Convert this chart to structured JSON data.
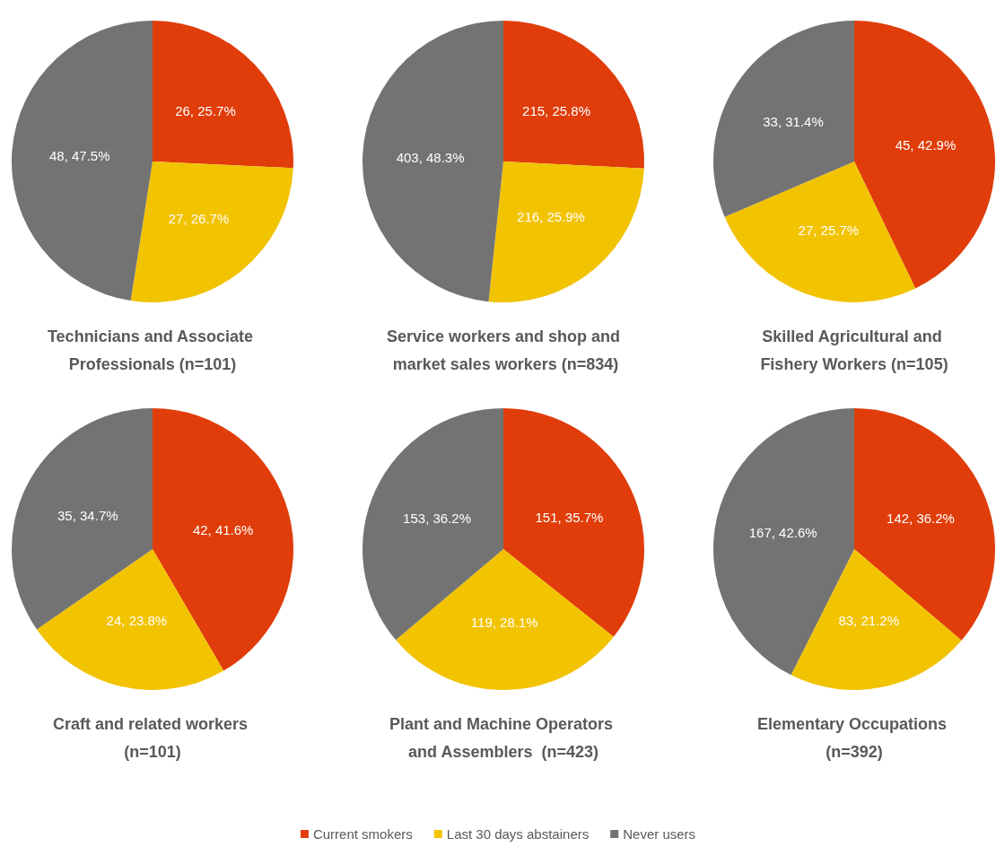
{
  "chart_data": {
    "type": "pie",
    "categories": [
      "Current smokers",
      "Last 30 days abstainers",
      "Never users"
    ],
    "colors": [
      "#e03d0b",
      "#f2c300",
      "#737373"
    ],
    "series": [
      {
        "name": "Technicians and Associate Professionals (n=101)",
        "values": [
          26,
          27,
          48
        ],
        "value_labels": [
          "26, 25.7%",
          "27, 26.7%",
          "48, 47.5%"
        ]
      },
      {
        "name": "Service workers and shop and market sales workers (n=834)",
        "values": [
          215,
          216,
          403
        ],
        "value_labels": [
          "215, 25.8%",
          "216, 25.9%",
          "403, 48.3%"
        ]
      },
      {
        "name": "Skilled Agricultural and Fishery Workers (n=105)",
        "values": [
          45,
          27,
          33
        ],
        "value_labels": [
          "45, 42.9%",
          "27, 25.7%",
          "33, 31.4%"
        ]
      },
      {
        "name": "Craft and related workers (n=101)",
        "values": [
          42,
          24,
          35
        ],
        "value_labels": [
          "42, 41.6%",
          "24, 23.8%",
          "35, 34.7%"
        ]
      },
      {
        "name": "Plant and Machine Operators and Assemblers  (n=423)",
        "values": [
          151,
          119,
          153
        ],
        "value_labels": [
          "151, 35.7%",
          "119, 28.1%",
          "153, 36.2%"
        ]
      },
      {
        "name": "Elementary Occupations (n=392)",
        "values": [
          142,
          83,
          167
        ],
        "value_labels": [
          "142, 36.2%",
          "83, 21.2%",
          "167, 42.6%"
        ]
      }
    ],
    "legend": "bottom"
  }
}
